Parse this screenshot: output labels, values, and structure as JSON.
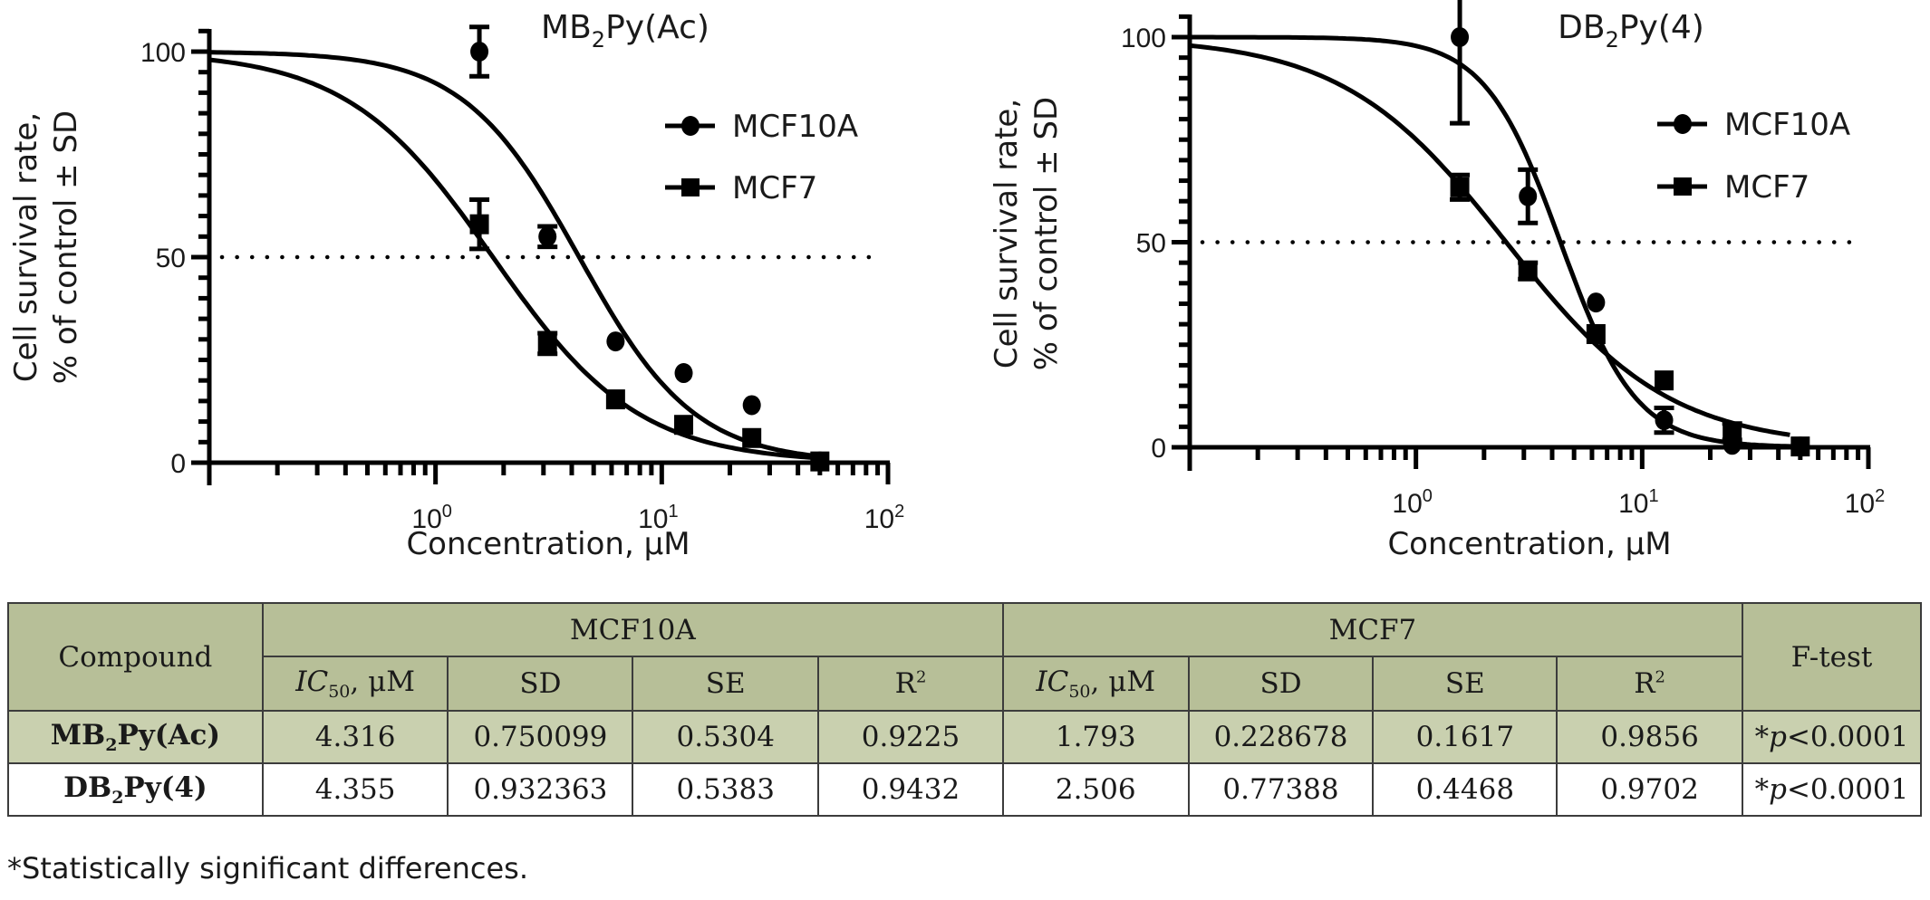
{
  "chart_data": [
    {
      "type": "scatter",
      "subtype": "dose-response with fitted sigmoid curves and error bars",
      "title": "MB2Py(Ac)",
      "title_base": "MB",
      "title_sub": "2",
      "title_rest": "Py(Ac)",
      "xlabel": "Concentration, μM",
      "ylabel_line1": "Cell survival rate,",
      "ylabel_line2": "% of control ± SD",
      "xscale": "log",
      "xlim": [
        0.1,
        100
      ],
      "ylim": [
        0,
        100
      ],
      "x_ticks": [
        {
          "value": 1,
          "label": "10",
          "exp": "0"
        },
        {
          "value": 10,
          "label": "10",
          "exp": "1"
        },
        {
          "value": 100,
          "label": "10",
          "exp": "2"
        }
      ],
      "y_ticks": [
        0,
        50,
        100
      ],
      "reference_line": {
        "y": 50,
        "style": "dotted"
      },
      "legend_position": "top-right",
      "series": [
        {
          "name": "MCF10A",
          "marker": "circle",
          "x": [
            1.5625,
            3.125,
            6.25,
            12.5,
            25,
            50
          ],
          "y": [
            100,
            55,
            29.5,
            21.8,
            14,
            0.3
          ],
          "err": [
            6,
            2.5,
            0,
            0,
            0,
            0
          ],
          "fit": {
            "ic50": 4.316,
            "hill": 1.7,
            "top": 100,
            "bottom": 0
          }
        },
        {
          "name": "MCF7",
          "marker": "square",
          "x": [
            1.5625,
            3.125,
            6.25,
            12.5,
            25,
            50
          ],
          "y": [
            58,
            29,
            15.4,
            9.2,
            6,
            0.3
          ],
          "err": [
            6,
            2.5,
            0,
            0,
            0,
            0
          ],
          "fit": {
            "ic50": 1.793,
            "hill": 1.35,
            "top": 100,
            "bottom": 0
          }
        }
      ]
    },
    {
      "type": "scatter",
      "subtype": "dose-response with fitted sigmoid curves and error bars",
      "title": "DB2Py(4)",
      "title_base": "DB",
      "title_sub": "2",
      "title_rest": "Py(4)",
      "xlabel": "Concentration, μM",
      "ylabel_line1": "Cell survival rate,",
      "ylabel_line2": "% of control ± SD",
      "xscale": "log",
      "xlim": [
        0.1,
        100
      ],
      "ylim": [
        0,
        100
      ],
      "x_ticks": [
        {
          "value": 1,
          "label": "10",
          "exp": "0"
        },
        {
          "value": 10,
          "label": "10",
          "exp": "1"
        },
        {
          "value": 100,
          "label": "10",
          "exp": "2"
        }
      ],
      "y_ticks": [
        0,
        50,
        100
      ],
      "reference_line": {
        "y": 50,
        "style": "dotted"
      },
      "legend_position": "top-right",
      "series": [
        {
          "name": "MCF10A",
          "marker": "circle",
          "x": [
            1.5625,
            3.125,
            6.25,
            12.5,
            25,
            50
          ],
          "y": [
            100,
            61.2,
            35.3,
            6.6,
            0.6,
            0.2
          ],
          "err": [
            21,
            6.5,
            0,
            3,
            0,
            0
          ],
          "fit": {
            "ic50": 4.355,
            "hill": 2.6,
            "top": 100,
            "bottom": 0,
            "xmax": 50
          }
        },
        {
          "name": "MCF7",
          "marker": "square",
          "x": [
            1.5625,
            3.125,
            6.25,
            12.5,
            25,
            50
          ],
          "y": [
            63.4,
            43,
            27.6,
            16.3,
            3.8,
            0.2
          ],
          "err": [
            3,
            2,
            0,
            0,
            2,
            0
          ],
          "fit": {
            "ic50": 2.506,
            "hill": 1.2,
            "top": 100,
            "bottom": 0,
            "xmax": 45
          }
        }
      ]
    }
  ],
  "table": {
    "header": {
      "compound": "Compound",
      "group1": "MCF10A",
      "group2": "MCF7",
      "ftest": "F-test",
      "ic50_base": "IC",
      "ic50_sub": "50",
      "ic50_unit": ", μM",
      "sd": "SD",
      "se": "SE",
      "r2_base": "R",
      "r2_sup": "2"
    },
    "rows": [
      {
        "compound_base": "MB",
        "compound_sub": "2",
        "compound_rest": "Py(Ac)",
        "mcf10a": {
          "ic50": "4.316",
          "sd": "0.750099",
          "se": "0.5304",
          "r2": "0.9225"
        },
        "mcf7": {
          "ic50": "1.793",
          "sd": "0.228678",
          "se": "0.1617",
          "r2": "0.9856"
        },
        "ftest_star": "*",
        "ftest_p": "p",
        "ftest_rest": "<0.0001"
      },
      {
        "compound_base": "DB",
        "compound_sub": "2",
        "compound_rest": "Py(4)",
        "mcf10a": {
          "ic50": "4.355",
          "sd": "0.932363",
          "se": "0.5383",
          "r2": "0.9432"
        },
        "mcf7": {
          "ic50": "2.506",
          "sd": "0.77388",
          "se": "0.4468",
          "r2": "0.9702"
        },
        "ftest_star": "*",
        "ftest_p": "p",
        "ftest_rest": "<0.0001"
      }
    ]
  },
  "footnote": "*Statistically significant differences."
}
